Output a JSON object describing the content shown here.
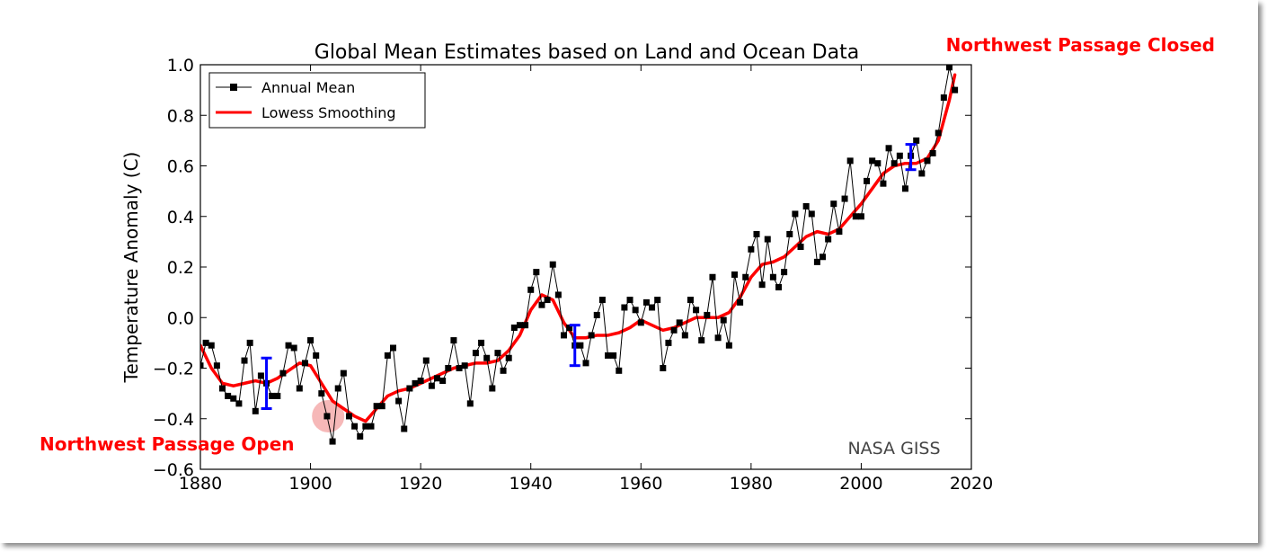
{
  "annotations": {
    "closed": "Northwest Passage Closed",
    "open": "Northwest Passage Open",
    "credit": "NASA GISS"
  },
  "colors": {
    "annual": "#000000",
    "smooth": "#ff0000",
    "errorbar": "#0000ff",
    "annotation": "#ff0000",
    "highlight": "#f4a6a6"
  },
  "chart_data": {
    "type": "line",
    "title": "Global Mean Estimates based on Land and Ocean Data",
    "xlabel": "",
    "ylabel": "Temperature Anomaly (C)",
    "xlim": [
      1880,
      2020
    ],
    "ylim": [
      -0.6,
      1.0
    ],
    "xticks": [
      "1880",
      "1900",
      "1920",
      "1940",
      "1960",
      "1980",
      "2000",
      "2020"
    ],
    "yticks": [
      "1.0",
      "0.8",
      "0.6",
      "0.4",
      "0.2",
      "0.0",
      "−0.2",
      "−0.4",
      "−0.6"
    ],
    "grid": false,
    "legend_position": "top-left",
    "series": [
      {
        "name": "Annual Mean",
        "style": "line-with-square-markers",
        "x": [
          1880,
          1881,
          1882,
          1883,
          1884,
          1885,
          1886,
          1887,
          1888,
          1889,
          1890,
          1891,
          1892,
          1893,
          1894,
          1895,
          1896,
          1897,
          1898,
          1899,
          1900,
          1901,
          1902,
          1903,
          1904,
          1905,
          1906,
          1907,
          1908,
          1909,
          1910,
          1911,
          1912,
          1913,
          1914,
          1915,
          1916,
          1917,
          1918,
          1919,
          1920,
          1921,
          1922,
          1923,
          1924,
          1925,
          1926,
          1927,
          1928,
          1929,
          1930,
          1931,
          1932,
          1933,
          1934,
          1935,
          1936,
          1937,
          1938,
          1939,
          1940,
          1941,
          1942,
          1943,
          1944,
          1945,
          1946,
          1947,
          1948,
          1949,
          1950,
          1951,
          1952,
          1953,
          1954,
          1955,
          1956,
          1957,
          1958,
          1959,
          1960,
          1961,
          1962,
          1963,
          1964,
          1965,
          1966,
          1967,
          1968,
          1969,
          1970,
          1971,
          1972,
          1973,
          1974,
          1975,
          1976,
          1977,
          1978,
          1979,
          1980,
          1981,
          1982,
          1983,
          1984,
          1985,
          1986,
          1987,
          1988,
          1989,
          1990,
          1991,
          1992,
          1993,
          1994,
          1995,
          1996,
          1997,
          1998,
          1999,
          2000,
          2001,
          2002,
          2003,
          2004,
          2005,
          2006,
          2007,
          2008,
          2009,
          2010,
          2011,
          2012,
          2013,
          2014,
          2015,
          2016,
          2017
        ],
        "values": [
          -0.19,
          -0.1,
          -0.11,
          -0.19,
          -0.28,
          -0.31,
          -0.32,
          -0.34,
          -0.17,
          -0.1,
          -0.37,
          -0.23,
          -0.26,
          -0.31,
          -0.31,
          -0.22,
          -0.11,
          -0.12,
          -0.28,
          -0.18,
          -0.09,
          -0.15,
          -0.3,
          -0.39,
          -0.49,
          -0.28,
          -0.22,
          -0.39,
          -0.43,
          -0.47,
          -0.43,
          -0.43,
          -0.35,
          -0.35,
          -0.15,
          -0.12,
          -0.33,
          -0.44,
          -0.28,
          -0.26,
          -0.25,
          -0.17,
          -0.27,
          -0.24,
          -0.25,
          -0.2,
          -0.09,
          -0.2,
          -0.19,
          -0.34,
          -0.14,
          -0.1,
          -0.16,
          -0.28,
          -0.14,
          -0.21,
          -0.16,
          -0.04,
          -0.03,
          -0.03,
          0.11,
          0.18,
          0.05,
          0.07,
          0.21,
          0.09,
          -0.07,
          -0.04,
          -0.11,
          -0.11,
          -0.18,
          -0.07,
          0.01,
          0.07,
          -0.15,
          -0.15,
          -0.21,
          0.04,
          0.07,
          0.03,
          -0.02,
          0.06,
          0.04,
          0.07,
          -0.2,
          -0.1,
          -0.05,
          -0.02,
          -0.07,
          0.07,
          0.03,
          -0.09,
          0.01,
          0.16,
          -0.08,
          -0.01,
          -0.11,
          0.17,
          0.06,
          0.16,
          0.27,
          0.33,
          0.13,
          0.31,
          0.16,
          0.12,
          0.18,
          0.33,
          0.41,
          0.28,
          0.44,
          0.41,
          0.22,
          0.24,
          0.31,
          0.45,
          0.34,
          0.47,
          0.62,
          0.4,
          0.4,
          0.54,
          0.62,
          0.61,
          0.53,
          0.67,
          0.61,
          0.64,
          0.51,
          0.64,
          0.7,
          0.57,
          0.62,
          0.65,
          0.73,
          0.87,
          0.99,
          0.9
        ]
      },
      {
        "name": "Lowess Smoothing",
        "style": "thick-line",
        "x": [
          1880,
          1882,
          1884,
          1886,
          1888,
          1890,
          1892,
          1894,
          1896,
          1898,
          1900,
          1902,
          1904,
          1906,
          1908,
          1910,
          1912,
          1914,
          1916,
          1918,
          1920,
          1922,
          1924,
          1926,
          1928,
          1930,
          1932,
          1934,
          1936,
          1938,
          1940,
          1942,
          1944,
          1946,
          1948,
          1950,
          1952,
          1954,
          1956,
          1958,
          1960,
          1962,
          1964,
          1966,
          1968,
          1970,
          1972,
          1974,
          1976,
          1978,
          1980,
          1982,
          1984,
          1986,
          1988,
          1990,
          1992,
          1994,
          1996,
          1998,
          2000,
          2002,
          2004,
          2006,
          2008,
          2010,
          2012,
          2014,
          2016,
          2017
        ],
        "values": [
          -0.11,
          -0.2,
          -0.26,
          -0.27,
          -0.26,
          -0.25,
          -0.26,
          -0.24,
          -0.21,
          -0.18,
          -0.19,
          -0.26,
          -0.33,
          -0.36,
          -0.39,
          -0.41,
          -0.36,
          -0.31,
          -0.29,
          -0.28,
          -0.26,
          -0.24,
          -0.22,
          -0.2,
          -0.19,
          -0.18,
          -0.18,
          -0.17,
          -0.13,
          -0.07,
          0.03,
          0.09,
          0.07,
          -0.02,
          -0.08,
          -0.08,
          -0.07,
          -0.07,
          -0.06,
          -0.04,
          -0.01,
          -0.03,
          -0.05,
          -0.04,
          -0.02,
          0.0,
          0.0,
          0.0,
          0.02,
          0.08,
          0.16,
          0.21,
          0.22,
          0.24,
          0.28,
          0.32,
          0.34,
          0.33,
          0.35,
          0.4,
          0.45,
          0.51,
          0.57,
          0.6,
          0.61,
          0.61,
          0.63,
          0.7,
          0.86,
          0.96
        ]
      }
    ],
    "error_bars": [
      {
        "x": 1892,
        "center": -0.26,
        "low": -0.36,
        "high": -0.16
      },
      {
        "x": 1948,
        "center": -0.08,
        "low": -0.19,
        "high": -0.03
      },
      {
        "x": 2009,
        "center": 0.635,
        "low": 0.585,
        "high": 0.685
      }
    ]
  }
}
